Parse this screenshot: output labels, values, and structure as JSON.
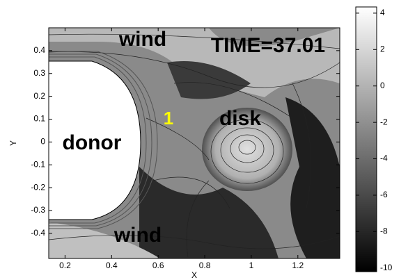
{
  "chart_data": {
    "type": "contour",
    "xlabel": "X",
    "ylabel": "Y",
    "xlim": [
      0.13,
      1.38
    ],
    "xticks": [
      0.2,
      0.4,
      0.6,
      0.8,
      1,
      1.2
    ],
    "ylim": [
      -0.51,
      0.5
    ],
    "yticks": [
      0.4,
      0.3,
      0.2,
      0.1,
      0,
      -0.1,
      -0.2,
      -0.3,
      -0.4
    ],
    "colorbar": {
      "clim": [
        -10.2,
        4.34
      ],
      "ticks": [
        4,
        2,
        0,
        -2,
        -4,
        -6,
        -8,
        -10
      ]
    },
    "annotations": [
      {
        "text": "wind",
        "color": "#000000"
      },
      {
        "text": "TIME=37.01",
        "color": "#000000"
      },
      {
        "text": "1",
        "color": "#ffff00"
      },
      {
        "text": "disk",
        "color": "#000000"
      },
      {
        "text": "donor",
        "color": "#000000"
      },
      {
        "text": "wind",
        "color": "#000000"
      }
    ]
  }
}
